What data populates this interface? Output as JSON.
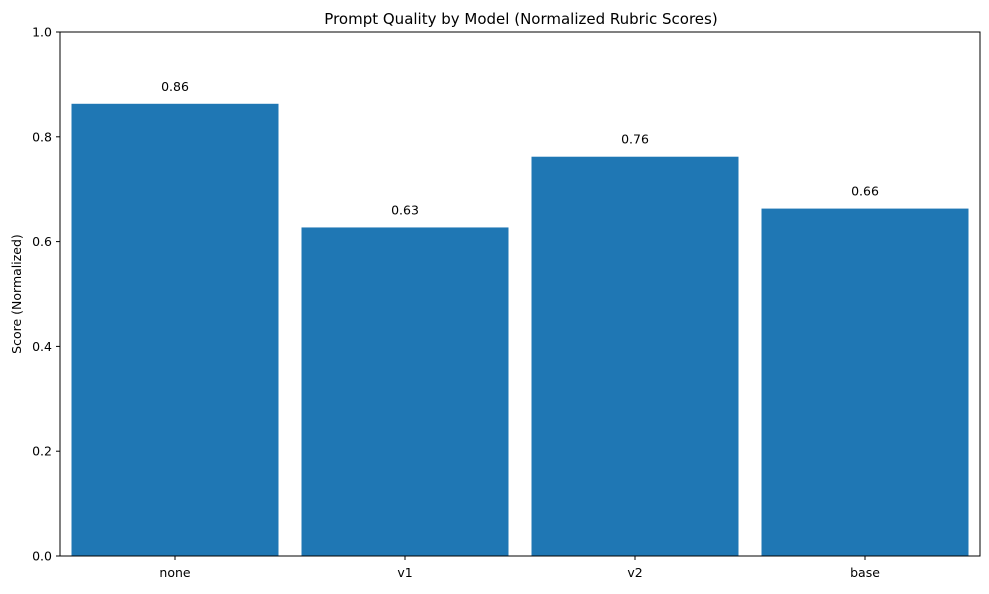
{
  "chart_data": {
    "type": "bar",
    "title": "Prompt Quality by Model (Normalized Rubric Scores)",
    "xlabel": "",
    "ylabel": "Score (Normalized)",
    "categories": [
      "none",
      "v1",
      "v2",
      "base"
    ],
    "values": [
      0.863,
      0.627,
      0.762,
      0.663
    ],
    "value_labels": [
      "0.86",
      "0.63",
      "0.76",
      "0.66"
    ],
    "ylim": [
      0,
      1.0
    ],
    "yticks": [
      0.0,
      0.2,
      0.4,
      0.6,
      0.8,
      1.0
    ],
    "ytick_labels": [
      "0.0",
      "0.2",
      "0.4",
      "0.6",
      "0.8",
      "1.0"
    ],
    "grid": false,
    "bar_color": "#1f77b4"
  }
}
